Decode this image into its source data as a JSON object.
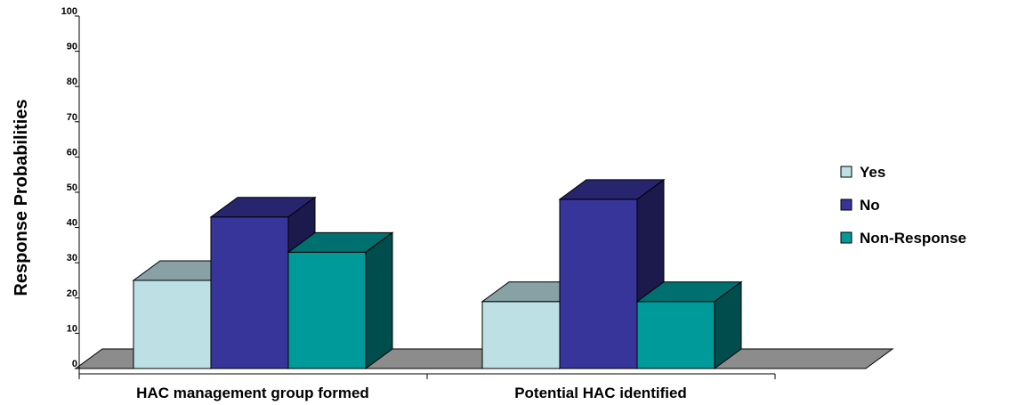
{
  "chart_data": {
    "type": "bar",
    "title": "",
    "xlabel": "",
    "ylabel": "Response Probabilities",
    "ylim": [
      0,
      100
    ],
    "yticks": [
      0,
      10,
      20,
      30,
      40,
      50,
      60,
      70,
      80,
      90,
      100
    ],
    "categories": [
      "HAC management group formed",
      "Potential HAC identified"
    ],
    "series": [
      {
        "name": "Yes",
        "values": [
          25,
          19
        ],
        "color": "#BCE0E4"
      },
      {
        "name": "No",
        "values": [
          43,
          48
        ],
        "color": "#37349A"
      },
      {
        "name": "Non-Response",
        "values": [
          33,
          19
        ],
        "color": "#009A9A"
      }
    ],
    "legend_position": "right",
    "grid": false,
    "style": "3d-clustered"
  }
}
